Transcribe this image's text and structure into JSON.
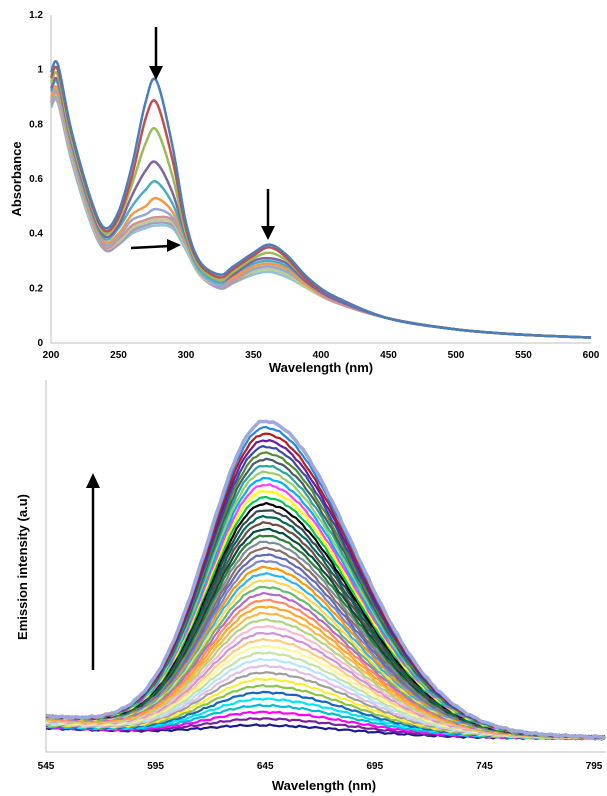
{
  "chart_data": [
    {
      "type": "line",
      "title": "",
      "xlabel": "Wavelength (nm)",
      "ylabel": "Absorbance",
      "xlim": [
        200,
        600
      ],
      "ylim": [
        0,
        1.2
      ],
      "x_ticks": [
        "200",
        "250",
        "300",
        "350",
        "400",
        "450",
        "500",
        "550",
        "600"
      ],
      "y_ticks": [
        "0",
        "0.2",
        "0.4",
        "0.6",
        "0.8",
        "1",
        "1.2"
      ],
      "grid": false,
      "legend": "none",
      "x": [
        200,
        205,
        215,
        230,
        240,
        250,
        260,
        270,
        278,
        290,
        300,
        310,
        325,
        335,
        350,
        362,
        375,
        390,
        410,
        450,
        500,
        550,
        600
      ],
      "series": [
        {
          "color": "#4a7ebb",
          "values": [
            0.99,
            1.02,
            0.78,
            0.52,
            0.42,
            0.48,
            0.65,
            0.88,
            0.96,
            0.72,
            0.44,
            0.3,
            0.25,
            0.28,
            0.33,
            0.36,
            0.32,
            0.24,
            0.17,
            0.09,
            0.05,
            0.03,
            0.02
          ]
        },
        {
          "color": "#c0504d",
          "values": [
            0.97,
            1.0,
            0.77,
            0.51,
            0.41,
            0.46,
            0.61,
            0.82,
            0.88,
            0.67,
            0.42,
            0.29,
            0.24,
            0.27,
            0.32,
            0.35,
            0.31,
            0.23,
            0.17,
            0.09,
            0.05,
            0.03,
            0.02
          ]
        },
        {
          "color": "#9bbb59",
          "values": [
            0.95,
            0.98,
            0.75,
            0.5,
            0.4,
            0.45,
            0.58,
            0.73,
            0.78,
            0.61,
            0.4,
            0.28,
            0.23,
            0.26,
            0.31,
            0.33,
            0.3,
            0.23,
            0.17,
            0.09,
            0.05,
            0.03,
            0.02
          ]
        },
        {
          "color": "#8064a2",
          "values": [
            0.93,
            0.96,
            0.74,
            0.49,
            0.39,
            0.43,
            0.54,
            0.63,
            0.66,
            0.55,
            0.39,
            0.28,
            0.23,
            0.25,
            0.3,
            0.31,
            0.29,
            0.22,
            0.16,
            0.09,
            0.05,
            0.03,
            0.02
          ]
        },
        {
          "color": "#4bacc6",
          "values": [
            0.92,
            0.95,
            0.73,
            0.48,
            0.38,
            0.42,
            0.5,
            0.56,
            0.59,
            0.51,
            0.38,
            0.27,
            0.22,
            0.25,
            0.29,
            0.3,
            0.28,
            0.22,
            0.16,
            0.09,
            0.05,
            0.03,
            0.02
          ]
        },
        {
          "color": "#f79646",
          "values": [
            0.9,
            0.93,
            0.72,
            0.47,
            0.37,
            0.4,
            0.47,
            0.5,
            0.53,
            0.48,
            0.37,
            0.27,
            0.22,
            0.24,
            0.28,
            0.29,
            0.27,
            0.21,
            0.16,
            0.09,
            0.05,
            0.03,
            0.02
          ]
        },
        {
          "color": "#93a9cf",
          "values": [
            0.89,
            0.92,
            0.71,
            0.46,
            0.36,
            0.39,
            0.45,
            0.47,
            0.49,
            0.46,
            0.36,
            0.26,
            0.21,
            0.24,
            0.27,
            0.28,
            0.26,
            0.21,
            0.16,
            0.09,
            0.05,
            0.03,
            0.02
          ]
        },
        {
          "color": "#d19392",
          "values": [
            0.88,
            0.91,
            0.7,
            0.45,
            0.35,
            0.38,
            0.43,
            0.45,
            0.46,
            0.45,
            0.36,
            0.26,
            0.21,
            0.23,
            0.27,
            0.28,
            0.26,
            0.21,
            0.15,
            0.09,
            0.05,
            0.03,
            0.02
          ]
        },
        {
          "color": "#b9cd96",
          "values": [
            0.88,
            0.9,
            0.69,
            0.44,
            0.35,
            0.37,
            0.42,
            0.44,
            0.45,
            0.44,
            0.35,
            0.25,
            0.21,
            0.23,
            0.26,
            0.27,
            0.25,
            0.2,
            0.15,
            0.09,
            0.05,
            0.03,
            0.02
          ]
        },
        {
          "color": "#a99bbd",
          "values": [
            0.87,
            0.89,
            0.68,
            0.44,
            0.34,
            0.36,
            0.41,
            0.43,
            0.44,
            0.43,
            0.35,
            0.25,
            0.2,
            0.22,
            0.26,
            0.27,
            0.25,
            0.2,
            0.15,
            0.09,
            0.05,
            0.03,
            0.02
          ]
        },
        {
          "color": "#91c3d5",
          "values": [
            0.86,
            0.88,
            0.67,
            0.43,
            0.34,
            0.36,
            0.4,
            0.42,
            0.43,
            0.42,
            0.34,
            0.25,
            0.2,
            0.22,
            0.25,
            0.26,
            0.24,
            0.2,
            0.15,
            0.09,
            0.05,
            0.03,
            0.02
          ]
        }
      ]
    },
    {
      "type": "line",
      "title": "",
      "xlabel": "Wavelength (nm)",
      "ylabel": "Emission intensity (a.u)",
      "xlim": [
        545,
        800
      ],
      "x_ticks": [
        "545",
        "595",
        "645",
        "695",
        "745",
        "795"
      ],
      "grid": false,
      "legend": "none",
      "peak_x": 645,
      "series_count": 48,
      "peak_levels": [
        0.03,
        0.05,
        0.07,
        0.09,
        0.11,
        0.13,
        0.15,
        0.17,
        0.19,
        0.21,
        0.23,
        0.25,
        0.27,
        0.29,
        0.31,
        0.33,
        0.35,
        0.37,
        0.39,
        0.41,
        0.43,
        0.45,
        0.47,
        0.49,
        0.51,
        0.53,
        0.55,
        0.57,
        0.59,
        0.61,
        0.63,
        0.65,
        0.67,
        0.69,
        0.71,
        0.73,
        0.75,
        0.77,
        0.79,
        0.81,
        0.83,
        0.85,
        0.87,
        0.89,
        0.91,
        0.93,
        0.95,
        0.97
      ],
      "colors": [
        "#1a1a8c",
        "#7b1fa2",
        "#ff00ff",
        "#00bcd4",
        "#00e5ff",
        "#1565c0",
        "#8bc34a",
        "#ffeb3b",
        "#9e9e9e",
        "#e1bee7",
        "#b3e5fc",
        "#c5e1a5",
        "#fff59d",
        "#ffcc80",
        "#ce93d8",
        "#f8bbd0",
        "#aed581",
        "#ffb74d",
        "#ffa726",
        "#ff8a65",
        "#ba68c8",
        "#66bb6a",
        "#ffd54f",
        "#29b6f6",
        "#ff9800",
        "#7986cb",
        "#5c6bc0",
        "#8d6e63",
        "#78909c",
        "#2e7d32",
        "#004d40",
        "#6d4c41",
        "#00695c",
        "#37474f",
        "#000000",
        "#00c853",
        "#ffff00",
        "#ff40ff",
        "#00b0ff",
        "#9ccc65",
        "#26a69a",
        "#455a64",
        "#558b2f",
        "#3949ab",
        "#6a1b9a",
        "#b71c1c",
        "#1e88e5",
        "#9fa8da"
      ]
    }
  ]
}
